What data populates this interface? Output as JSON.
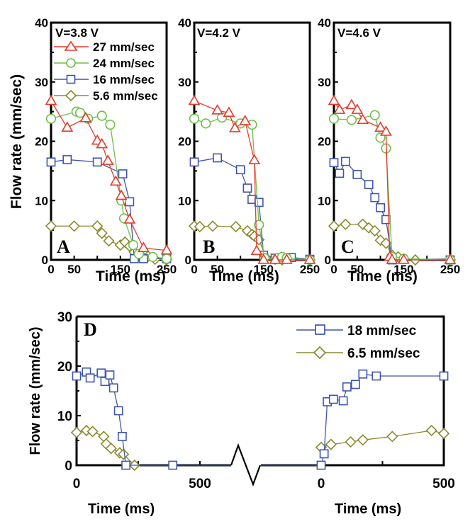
{
  "colors": {
    "27 mm/sec": "#e8392b",
    "24 mm/sec": "#6dbf4a",
    "16 mm/sec": "#3f55b0",
    "5.6 mm/sec": "#8a8a2e",
    "18 mm/sec": "#3f55b0",
    "6.5 mm/sec": "#8a8a2e",
    "axis": "#000000"
  },
  "chart_data": [
    {
      "type": "line",
      "panel": "A",
      "annotation": "V=3.8 V",
      "xlabel": "Time (ms)",
      "ylabel": "Flow rate (mm/sec)",
      "xlim": [
        0,
        250
      ],
      "ylim": [
        0,
        40
      ],
      "xticks": [
        0,
        50,
        150,
        250
      ],
      "xtick_labels": [
        "0",
        "50",
        "150",
        "250"
      ],
      "yticks": [
        0,
        10,
        20,
        30,
        40
      ],
      "ytick_labels": [
        "0",
        "10",
        "20",
        "30",
        "40"
      ],
      "legend": {
        "placement": "top-left",
        "entries": [
          "27 mm/sec",
          "24 mm/sec",
          "16 mm/sec",
          "5.6 mm/sec"
        ]
      },
      "series": [
        {
          "name": "27 mm/sec",
          "marker": "triangle",
          "x": [
            0,
            35,
            75,
            100,
            110,
            123,
            140,
            152,
            170,
            200,
            250
          ],
          "y": [
            26.8,
            22.3,
            23.9,
            20.1,
            19.5,
            16.7,
            13.2,
            10.8,
            6.8,
            2.0,
            1.6
          ]
        },
        {
          "name": "24 mm/sec",
          "marker": "circle",
          "x": [
            0,
            55,
            63,
            80,
            110,
            128,
            152,
            158,
            178,
            190,
            220,
            250
          ],
          "y": [
            23.8,
            25.0,
            24.8,
            23.8,
            24.3,
            22.8,
            10.0,
            7.0,
            2.5,
            1.0,
            0.5,
            0.2
          ]
        },
        {
          "name": "16 mm/sec",
          "marker": "square",
          "x": [
            0,
            35,
            100,
            155,
            170,
            180,
            200,
            250
          ],
          "y": [
            16.5,
            16.9,
            16.5,
            14.5,
            9.8,
            0.2,
            0.2,
            0.2
          ]
        },
        {
          "name": "5.6 mm/sec",
          "marker": "diamond",
          "x": [
            0,
            50,
            100,
            110,
            125,
            150,
            160,
            170,
            180,
            190,
            200,
            210,
            225,
            250
          ],
          "y": [
            5.7,
            5.7,
            5.7,
            4.5,
            3.2,
            2.5,
            3.0,
            2.3,
            1.3,
            0.8,
            0.4,
            0.6,
            0.1,
            0.0
          ]
        }
      ]
    },
    {
      "type": "line",
      "panel": "B",
      "annotation": "V=4.2 V",
      "xlabel": "Time (ms)",
      "ylabel": "",
      "xlim": [
        0,
        250
      ],
      "ylim": [
        0,
        40
      ],
      "xticks": [
        0,
        50,
        150,
        250
      ],
      "xtick_labels": [
        "0",
        "50",
        "150",
        "250"
      ],
      "yticks": [
        0,
        10,
        20,
        30,
        40
      ],
      "ytick_labels": [
        "0",
        "10",
        "20",
        "30",
        "40"
      ],
      "series": [
        {
          "name": "27 mm/sec",
          "marker": "triangle",
          "x": [
            0,
            50,
            75,
            88,
            110,
            130,
            135,
            150,
            175,
            200,
            250
          ],
          "y": [
            26.8,
            25.2,
            24.8,
            22.2,
            23.4,
            16.8,
            1.5,
            0.0,
            0.0,
            0.0,
            0.0
          ]
        },
        {
          "name": "24 mm/sec",
          "marker": "circle",
          "x": [
            0,
            25,
            60,
            100,
            125,
            140,
            152,
            180,
            190,
            200,
            250
          ],
          "y": [
            23.8,
            23.0,
            24.0,
            23.0,
            22.8,
            5.9,
            0.3,
            0.3,
            0.5,
            0.3,
            0.0
          ]
        },
        {
          "name": "16 mm/sec",
          "marker": "square",
          "x": [
            0,
            50,
            100,
            115,
            125,
            140,
            150,
            175,
            210,
            250
          ],
          "y": [
            16.5,
            17.2,
            15.2,
            12.1,
            10.2,
            9.7,
            0.8,
            0.3,
            0.4,
            0.1
          ]
        },
        {
          "name": "5.6 mm/sec",
          "marker": "diamond",
          "x": [
            0,
            12,
            40,
            90,
            115,
            125,
            130,
            140,
            155,
            175,
            190,
            250
          ],
          "y": [
            5.7,
            5.6,
            5.7,
            5.6,
            4.9,
            4.3,
            4.0,
            3.4,
            0.4,
            0.1,
            0.0,
            0.0
          ]
        }
      ]
    },
    {
      "type": "line",
      "panel": "C",
      "annotation": "V=4.6 V",
      "xlabel": "Time (ms)",
      "ylabel": "",
      "xlim": [
        0,
        250
      ],
      "ylim": [
        0,
        40
      ],
      "xticks": [
        0,
        50,
        150,
        250
      ],
      "xtick_labels": [
        "0",
        "50",
        "150",
        "250"
      ],
      "yticks": [
        0,
        10,
        20,
        30,
        40
      ],
      "ytick_labels": [
        "0",
        "10",
        "20",
        "30",
        "40"
      ],
      "series": [
        {
          "name": "27 mm/sec",
          "marker": "triangle",
          "x": [
            0,
            12,
            38,
            50,
            62,
            100,
            112,
            120,
            125,
            150,
            250
          ],
          "y": [
            26.8,
            25.3,
            26.1,
            25.3,
            23.6,
            22.3,
            21.6,
            0.5,
            0.0,
            0.0,
            0.0
          ]
        },
        {
          "name": "24 mm/sec",
          "marker": "circle",
          "x": [
            0,
            38,
            88,
            100,
            112,
            125,
            150,
            250
          ],
          "y": [
            23.8,
            23.6,
            24.4,
            20.6,
            18.8,
            0.5,
            0.2,
            0.0
          ]
        },
        {
          "name": "16 mm/sec",
          "marker": "square",
          "x": [
            0,
            12,
            25,
            50,
            75,
            88,
            100,
            112,
            125,
            250
          ],
          "y": [
            16.4,
            14.6,
            16.6,
            14.4,
            12.7,
            10.5,
            8.8,
            6.8,
            0.0,
            0.0
          ]
        },
        {
          "name": "5.6 mm/sec",
          "marker": "diamond",
          "x": [
            0,
            25,
            62,
            75,
            88,
            100,
            112,
            125,
            138,
            175,
            250
          ],
          "y": [
            5.7,
            6.0,
            6.0,
            5.4,
            4.9,
            3.3,
            2.8,
            0.8,
            0.5,
            0.0,
            0.0
          ]
        }
      ]
    },
    {
      "type": "line",
      "panel": "D",
      "annotation": "",
      "xlabel": "Time (ms)",
      "ylabel": "Flow rate (mm/sec)",
      "segments": [
        {
          "xlim": [
            0,
            500
          ],
          "xticks": [
            0,
            500
          ],
          "xtick_labels": [
            "0",
            "500"
          ]
        },
        {
          "xlim": [
            0,
            500
          ],
          "xticks": [
            0,
            500
          ],
          "xtick_labels": [
            "0",
            "500"
          ]
        }
      ],
      "ylim": [
        0,
        30
      ],
      "yticks": [
        0,
        10,
        20,
        30
      ],
      "ytick_labels": [
        "0",
        "10",
        "20",
        "30"
      ],
      "axis_break": true,
      "legend": {
        "placement": "top-right",
        "entries": [
          "18 mm/sec",
          "6.5 mm/sec"
        ]
      },
      "series": [
        {
          "name": "18 mm/sec",
          "marker": "square",
          "segment1": {
            "x": [
              0,
              40,
              55,
              100,
              115,
              135,
              150,
              170,
              185,
              200,
              390
            ],
            "y": [
              18.0,
              18.8,
              17.6,
              18.6,
              16.9,
              18.2,
              15.6,
              11.0,
              5.8,
              0.0,
              0.0
            ]
          },
          "segment2": {
            "x": [
              0,
              12,
              25,
              50,
              90,
              105,
              140,
              170,
              225,
              500
            ],
            "y": [
              0.0,
              2.3,
              12.8,
              13.3,
              13.0,
              15.8,
              16.3,
              18.4,
              18.0,
              18.0
            ]
          }
        },
        {
          "name": "6.5 mm/sec",
          "marker": "diamond",
          "segment1": {
            "x": [
              0,
              40,
              65,
              110,
              120,
              140,
              175,
              190,
              235
            ],
            "y": [
              6.6,
              7.0,
              6.8,
              5.8,
              4.3,
              3.4,
              2.5,
              2.2,
              0.0
            ]
          },
          "segment2": {
            "x": [
              0,
              40,
              120,
              170,
              290,
              450,
              500
            ],
            "y": [
              3.6,
              4.2,
              4.7,
              5.1,
              5.8,
              7.0,
              6.4
            ]
          }
        }
      ]
    }
  ]
}
